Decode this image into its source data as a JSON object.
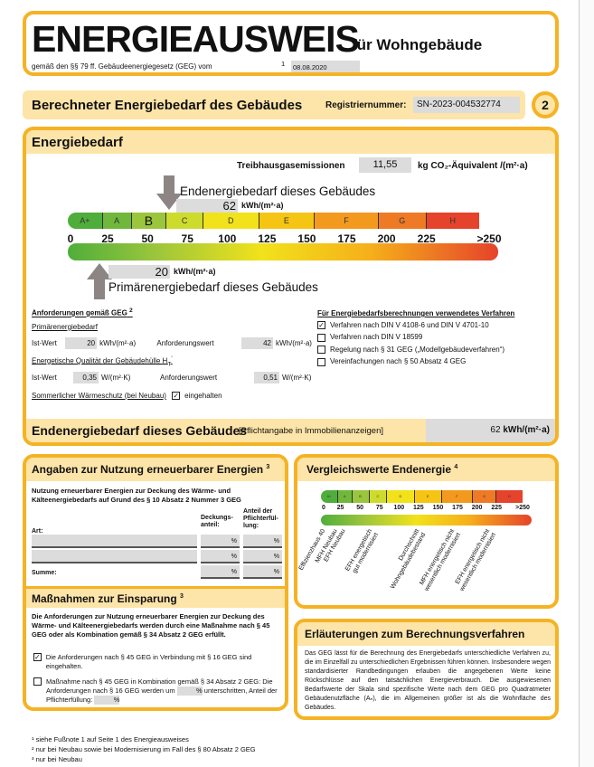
{
  "header": {
    "title": "ENERGIEAUSWEIS",
    "title_suffix": "für Wohngebäude",
    "law_text": "gemäß den §§ 79 ff. Gebäudeenergiegesetz (GEG) vom",
    "law_footnote": "1",
    "law_date": "08.08.2020"
  },
  "section": {
    "title": "Berechneter Energiebedarf des Gebäudes",
    "reg_label": "Registriernummer:",
    "reg_value": "SN-2023-004532774",
    "page_number": "2"
  },
  "energiebedarf": {
    "title": "Energiebedarf",
    "ghg_label": "Treibhausgasemissionen",
    "ghg_value": "11,55",
    "ghg_unit": "kg CO₂-Äquivalent /(m²·a)",
    "end_label": "Endenergiebedarf dieses Gebäudes",
    "end_value": "62",
    "unit": "kWh/(m²·a)",
    "prim_label": "Primärenergiebedarf dieses Gebäudes",
    "prim_value": "20",
    "classes": [
      "A+",
      "A",
      "B",
      "C",
      "D",
      "E",
      "F",
      "G",
      "H"
    ],
    "highlighted_class": "B",
    "ticks": [
      "0",
      "25",
      "50",
      "75",
      "100",
      "125",
      "150",
      "175",
      "200",
      "225",
      ">250"
    ],
    "colors": {
      "A+": "#4fae3b",
      "A": "#6fb83c",
      "B": "#9ac53c",
      "C": "#cddc2c",
      "D": "#f1e21b",
      "E": "#f6c514",
      "F": "#f39a1e",
      "G": "#ee7a25",
      "H": "#e5432b",
      "border": "#f5b324",
      "band": "#fde4a8",
      "arrow": "#8c8584"
    }
  },
  "requirements": {
    "title": "Anforderungen gemäß GEG",
    "title_note": "2",
    "primary_title": "Primärenergiebedarf",
    "ist_label": "Ist-Wert",
    "prim_ist": "20",
    "prim_unit": "kWh/(m²·a)",
    "anf_label": "Anforderungswert",
    "prim_anf": "42",
    "hull_title": "Energetische Qualität der Gebäudehülle H",
    "hull_sub": "T",
    "hull_note": "'",
    "hull_ist": "0,35",
    "hull_unit": "W/(m²·K)",
    "hull_anf": "0,51",
    "summer_label": "Sommerlicher Wärmeschutz (bei Neubau)",
    "summer_checked": "✓",
    "summer_text": "eingehalten"
  },
  "methods": {
    "title": "Für Energiebedarfsberechnungen verwendetes Verfahren",
    "items": [
      {
        "label": "Verfahren nach DIN V 4108-6 und DIN V 4701-10",
        "mark": "✓"
      },
      {
        "label": "Verfahren nach DIN V 18599",
        "mark": ""
      },
      {
        "label": "Regelung nach § 31 GEG („Modellgebäudeverfahren“)",
        "mark": ""
      },
      {
        "label": "Vereinfachungen nach § 50 Absatz 4 GEG",
        "mark": ""
      }
    ]
  },
  "final": {
    "label": "Endenergiebedarf dieses Gebäudes",
    "note": "[Pflichtangabe in Immobilienanzeigen]",
    "value": "62",
    "unit": "kWh/(m²·a)"
  },
  "renewables": {
    "title": "Angaben zur Nutzung erneuerbarer Energien",
    "title_note": "3",
    "intro": "Nutzung erneuerbarer Energien zur Deckung des Wärme- und Kälteenergiebedarfs auf Grund des § 10 Absatz 2 Nummer 3 GEG",
    "col_art": "Art:",
    "col_deckung": "Deckungs-anteil:",
    "col_anteil": "Anteil der Pflichterfül-lung:",
    "percent": "%",
    "sum_label": "Summe:"
  },
  "measures": {
    "title": "Maßnahmen zur Einsparung",
    "title_note": "3",
    "intro": "Die Anforderungen zur Nutzung erneuerbarer Energien zur Deckung des Wärme- und Kälteenergiebedarfs werden durch eine Maßnahme nach § 45 GEG oder als Kombination gemäß § 34 Absatz 2 GEG erfüllt.",
    "opt1": "Die Anforderungen nach § 45 GEG in Verbindung mit § 16 GEG sind eingehalten.",
    "opt1_mark": "✓",
    "opt2a": "Maßnahme nach § 45 GEG in Kombination gemäß § 34 Absatz 2 GEG: Die Anforderungen nach § 16 GEG werden um",
    "opt2b": "unterschritten, Anteil der Pflichterfüllung:",
    "percent": "%"
  },
  "comparison": {
    "title": "Vergleichswerte Endenergie",
    "title_note": "4",
    "labels": [
      {
        "text": "Effizienzhaus 40",
        "value": "10"
      },
      {
        "text": "MFH Neubau",
        "value": "25"
      },
      {
        "text": "EFH Neubau",
        "value": "35"
      },
      {
        "text": "EFH energetisch\ngut modernisiert",
        "value": "70"
      },
      {
        "text": "Durchschnitt\nWohngebäudebestand",
        "value": "130"
      },
      {
        "text": "MFH energetisch nicht\nwesentlich modernisiert",
        "value": "175"
      },
      {
        "text": "EFH energetisch nicht\nwesentlich modernisiert",
        "value": "220"
      }
    ]
  },
  "explanation": {
    "title": "Erläuterungen zum Berechnungsverfahren",
    "text": "Das GEG lässt für die Berechnung des Energiebedarfs unterschiedliche Verfahren zu, die im Einzelfall zu unterschiedlichen Ergebnissen führen können. Insbesondere wegen standardisierter Randbedingungen erlauben die angegebenen Werte keine Rückschlüsse auf den tatsächlichen Energieverbrauch. Die ausgewiesenen Bedarfswerte der Skala sind spezifische Werte nach dem GEG pro Quadratmeter Gebäudenutzfläche (Aₙ), die im Allgemeinen größer ist als die Wohnfläche des Gebäudes."
  },
  "footnotes": [
    "¹ siehe Fußnote 1 auf Seite 1 des Energieausweises",
    "² nur bei Neubau sowie bei Modernisierung im Fall des § 80 Absatz 2 GEG",
    "³ nur bei Neubau"
  ]
}
